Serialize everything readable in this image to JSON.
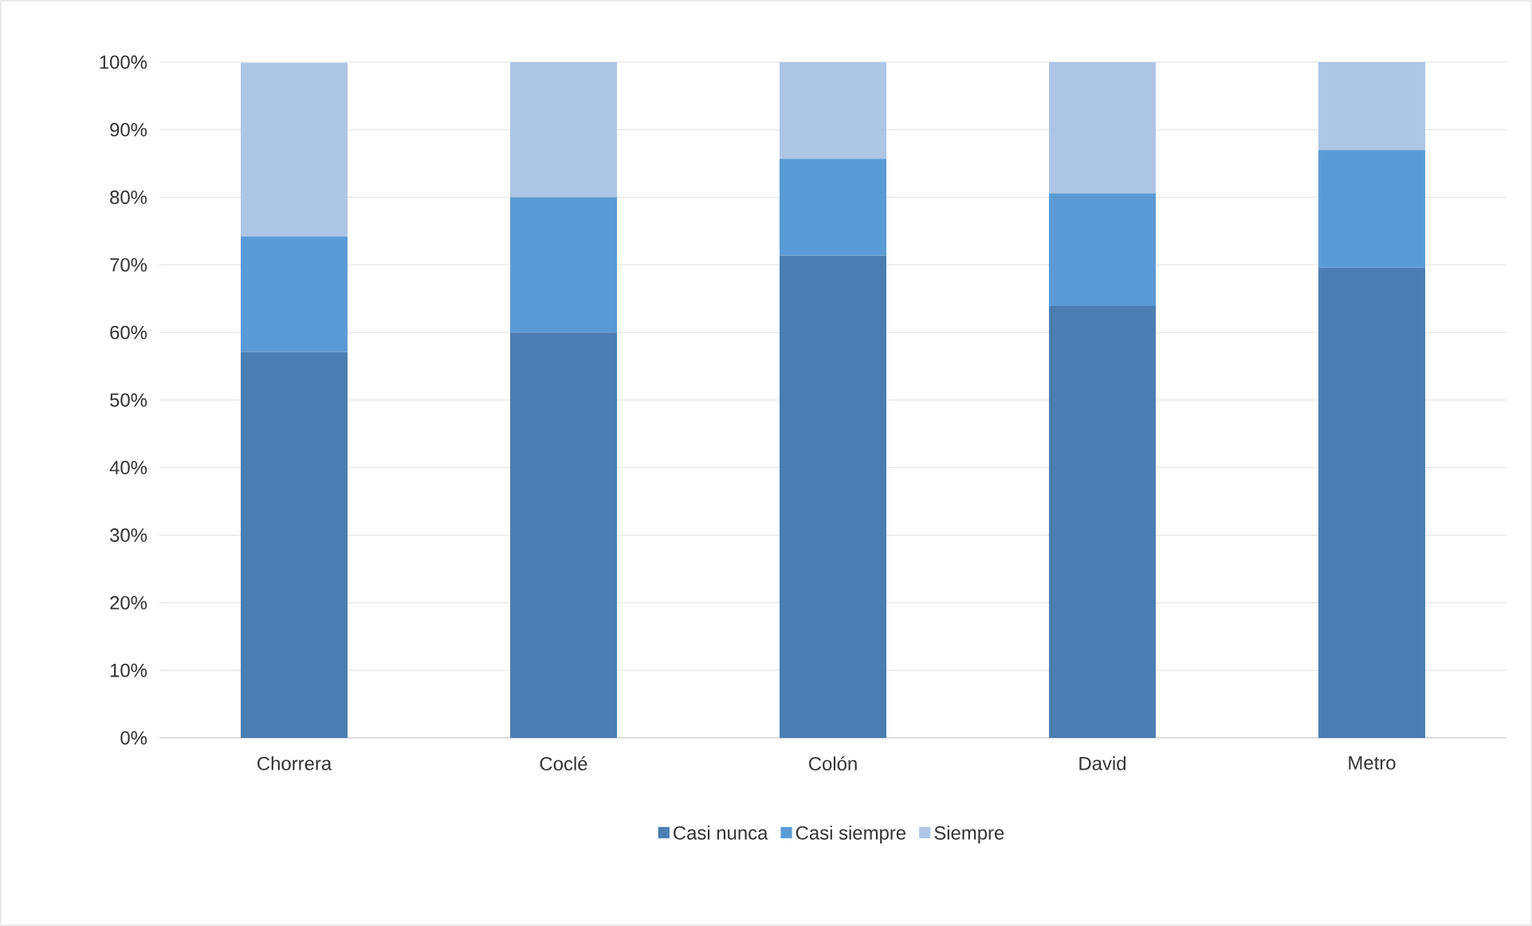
{
  "chart_data": {
    "type": "bar",
    "stacked": true,
    "categories": [
      "Chorrera",
      "Coclé",
      "Colón",
      "David",
      "Metro"
    ],
    "series": [
      {
        "name": "Casi nunca",
        "color": "#4a7eb3",
        "values": [
          57.1,
          60,
          71.4,
          63.9,
          69.6
        ]
      },
      {
        "name": "Casi siempre",
        "color": "#5b9bd5",
        "values": [
          17.1,
          20,
          14.3,
          16.7,
          17.4
        ]
      },
      {
        "name": "Siempre",
        "color": "#aec5e6",
        "values": [
          25.7,
          20,
          14.3,
          19.4,
          13.0
        ]
      }
    ],
    "ylim": [
      0,
      100
    ],
    "yticks": [
      {
        "value": 0,
        "label": "0%"
      },
      {
        "value": 10,
        "label": "10%"
      },
      {
        "value": 20,
        "label": "20%"
      },
      {
        "value": 30,
        "label": "30%"
      },
      {
        "value": 40,
        "label": "40%"
      },
      {
        "value": 50,
        "label": "50%"
      },
      {
        "value": 60,
        "label": "60%"
      },
      {
        "value": 70,
        "label": "70%"
      },
      {
        "value": 80,
        "label": "80%"
      },
      {
        "value": 90,
        "label": "90%"
      },
      {
        "value": 100,
        "label": "100%"
      }
    ],
    "grid": "y",
    "legend": "bottom"
  }
}
